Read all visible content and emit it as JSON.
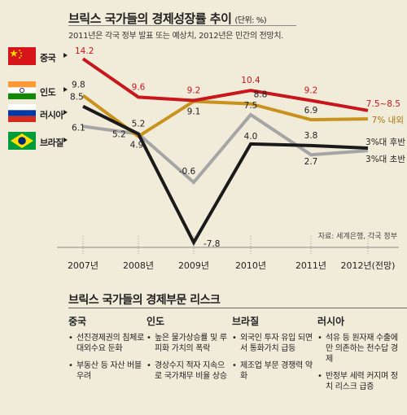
{
  "header": {
    "title": "브릭스 국가들의 경제성장률 추이",
    "unit": "(단위: %)",
    "subtitle": "2011년은 각국 정부 발표 또는 예상치,  2012년은 민간의 전망치."
  },
  "source": "자료: 세계은행, 각국 정부",
  "countries": [
    {
      "name": "중국",
      "flag": "china-flag-icon"
    },
    {
      "name": "인도",
      "flag": "india-flag-icon"
    },
    {
      "name": "러시아",
      "flag": "russia-flag-icon"
    },
    {
      "name": "브라질",
      "flag": "brazil-flag-icon"
    }
  ],
  "chart_data": {
    "type": "line",
    "title": "브릭스 국가들의 경제성장률 추이",
    "subtitle": "2011년은 각국 정부 발표 또는 예상치,  2012년은 민간의 전망치.",
    "unit": "%",
    "categories": [
      "2007년",
      "2008년",
      "2009년",
      "2010년",
      "2011년",
      "2012년(전망)"
    ],
    "series": [
      {
        "name": "중국",
        "color": "#c8161d",
        "values": [
          14.2,
          9.6,
          9.2,
          10.4,
          9.2,
          8.0
        ],
        "labels": [
          "14.2",
          "9.6",
          "9.2",
          "10.4",
          "9.2",
          "7.5~8.5"
        ]
      },
      {
        "name": "인도",
        "color": "#c8921c",
        "values": [
          9.8,
          4.9,
          9.1,
          8.8,
          6.9,
          7.0
        ],
        "labels": [
          "9.8",
          "4.9",
          "9.1",
          "8.8",
          "6.9",
          "7% 내외"
        ]
      },
      {
        "name": "러시아",
        "color": "#1a1a1a",
        "values": [
          8.5,
          5.2,
          -7.8,
          4.0,
          3.8,
          3.5
        ],
        "labels": [
          "8.5",
          "5.2",
          "-7.8",
          "4.0",
          "3.8",
          "3%대 후반"
        ]
      },
      {
        "name": "브라질",
        "color": "#a5a5a5",
        "values": [
          6.1,
          5.2,
          -0.6,
          7.5,
          2.7,
          3.2
        ],
        "labels": [
          "6.1",
          "5.2",
          "-0.6",
          "7.5",
          "2.7",
          "3%대 초반"
        ]
      }
    ],
    "ylim": [
      -8,
      15
    ],
    "grid": false,
    "legend": "left"
  },
  "risk": {
    "title": "브릭스 국가들의 경제부문 리스크",
    "columns": [
      {
        "country": "중국",
        "items": [
          "선진경제권의 침체로 대외수요 둔화",
          "부동산 등 자산 버블 우려"
        ]
      },
      {
        "country": "인도",
        "items": [
          "높은 물가상승률 및 루피화 가치의 폭락",
          "경상수지 적자 지속으로 국가채무 비율 상승"
        ]
      },
      {
        "country": "브라질",
        "items": [
          "외국인 투자 유입 되면서 통화가치 급등",
          "제조업 부문 경쟁력 약화"
        ]
      },
      {
        "country": "러시아",
        "items": [
          "석유 등 원자재 수출에만 의존하는 천수답 경제",
          "반정부 세력 커지며 정치 리스크 급증"
        ]
      }
    ]
  }
}
